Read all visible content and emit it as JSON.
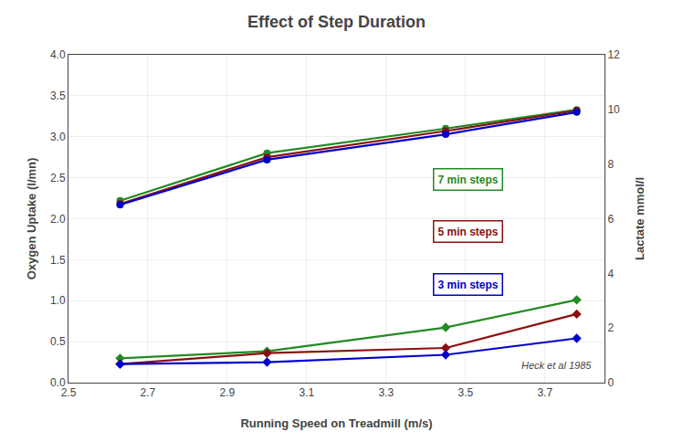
{
  "chart_data": {
    "type": "line",
    "title": "Effect of Step Duration",
    "x_label": "Running Speed on Treadmill (m/s)",
    "y_label": "Oxygen Uptake (l/mn)",
    "y2_label": "Lactate mmol/l",
    "x": [
      2.63,
      3.0,
      3.45,
      3.78
    ],
    "series": [
      {
        "color": "#228B22",
        "marker": "circle",
        "axis": "y",
        "values": [
          2.22,
          2.8,
          3.1,
          3.33
        ]
      },
      {
        "color": "#8B1010",
        "marker": "circle",
        "axis": "y",
        "values": [
          2.18,
          2.75,
          3.07,
          3.32
        ]
      },
      {
        "color": "#0000CC",
        "marker": "circle",
        "axis": "y",
        "values": [
          2.17,
          2.72,
          3.03,
          3.3
        ]
      },
      {
        "color": "#228B22",
        "marker": "diamond",
        "axis": "y2",
        "values": [
          0.89,
          1.15,
          2.02,
          3.03
        ]
      },
      {
        "color": "#8B1010",
        "marker": "diamond",
        "axis": "y2",
        "values": [
          0.68,
          1.08,
          1.27,
          2.51
        ]
      },
      {
        "color": "#0000CC",
        "marker": "diamond",
        "axis": "y2",
        "values": [
          0.68,
          0.75,
          1.02,
          1.62
        ]
      }
    ],
    "xlim": [
      2.5,
      3.85
    ],
    "xticks": [
      2.5,
      2.7,
      2.9,
      3.1,
      3.3,
      3.5,
      3.7
    ],
    "ylim": [
      0,
      4
    ],
    "yticks": [
      {
        "value": 0,
        "label": "0.0"
      },
      0.5,
      {
        "value": 1,
        "label": "1.0"
      },
      1.5,
      {
        "value": 2,
        "label": "2.0"
      },
      2.5,
      {
        "value": 3,
        "label": "3.0"
      },
      3.5,
      {
        "value": 4,
        "label": "4.0"
      }
    ],
    "y2lim": [
      0,
      12
    ],
    "y2ticks": [
      0,
      2,
      4,
      6,
      8,
      10,
      12
    ],
    "grid": true,
    "annotations": [
      {
        "text": "7 min steps",
        "color": "#228B22"
      },
      {
        "text": "5 min steps",
        "color": "#8B1010"
      },
      {
        "text": "3 min steps",
        "color": "#0000CC"
      },
      {
        "text": "Heck et al 1985"
      }
    ]
  }
}
